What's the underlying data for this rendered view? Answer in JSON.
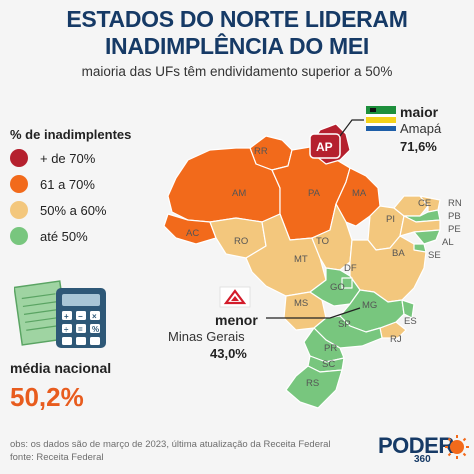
{
  "header": {
    "title_line1": "ESTADOS DO NORTE LIDERAM",
    "title_line2": "INADIMPLÊNCIA DO MEI",
    "subtitle": "maioria das UFs têm endividamento superior a 50%"
  },
  "legend": {
    "title": "% de inadimplentes",
    "items": [
      {
        "label": "+ de 70%",
        "color": "#b5202e"
      },
      {
        "label": "61 a 70%",
        "color": "#f26a1b"
      },
      {
        "label": "50% a 60%",
        "color": "#f3c77d"
      },
      {
        "label": "até 50%",
        "color": "#78c67e"
      }
    ]
  },
  "map": {
    "states": [
      "RR",
      "AP",
      "AM",
      "PA",
      "MA",
      "CE",
      "RN",
      "PB",
      "PE",
      "AL",
      "SE",
      "PI",
      "AC",
      "RO",
      "TO",
      "BA",
      "MT",
      "DF",
      "GO",
      "MS",
      "MG",
      "ES",
      "SP",
      "RJ",
      "PR",
      "SC",
      "RS"
    ]
  },
  "annotations": {
    "max": {
      "label": "maior",
      "state_name": "Amapá",
      "value": "71,6%",
      "flag": "amapa-flag"
    },
    "min": {
      "label": "menor",
      "state_name": "Minas Gerais",
      "value": "43,0%",
      "flag": "minas-gerais-flag"
    }
  },
  "national": {
    "label": "média nacional",
    "value": "50,2%"
  },
  "footer": {
    "obs": "obs: os dados são de março de 2023, última atualização da Receita Federal",
    "source": "fonte: Receita Federal"
  },
  "brand": {
    "name": "PODER",
    "sub": "360"
  },
  "colors": {
    "title": "#163a66",
    "highest": "#b5202e",
    "high": "#f26a1b",
    "mid": "#f3c77d",
    "low": "#78c67e"
  }
}
